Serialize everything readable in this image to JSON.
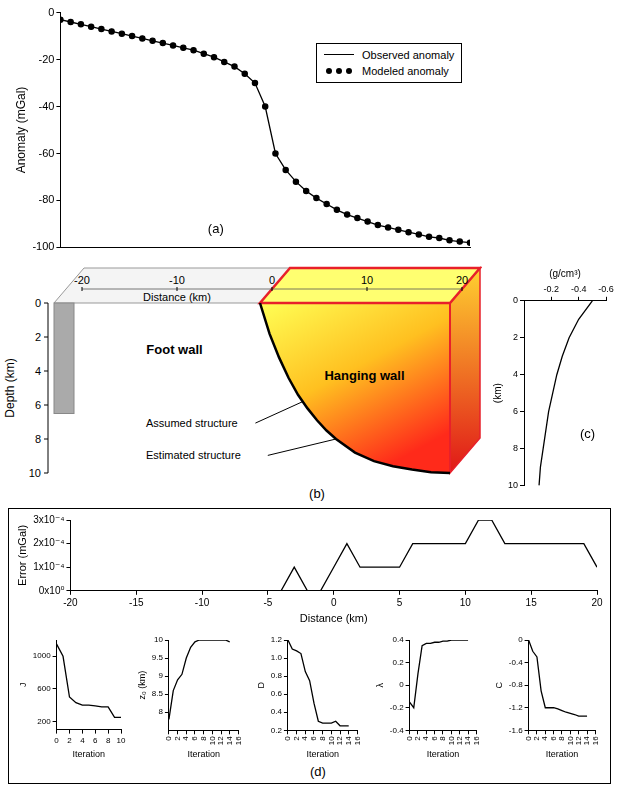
{
  "chart_data": [
    {
      "panel": "(a)",
      "type": "line",
      "y_label": "Anomaly (mGal)",
      "xlim": [
        -20,
        20
      ],
      "ylim": [
        -100,
        0
      ],
      "yticks": [
        -100,
        -80,
        -60,
        -40,
        -20,
        0
      ],
      "tick_labels": "y",
      "grid": false,
      "legend": "upper right",
      "x": [
        -20,
        -19,
        -18,
        -17,
        -16,
        -15,
        -14,
        -13,
        -12,
        -11,
        -10,
        -9,
        -8,
        -7,
        -6,
        -5,
        -4,
        -3,
        -2,
        -1,
        0,
        1,
        2,
        3,
        4,
        5,
        6,
        7,
        8,
        9,
        10,
        11,
        12,
        13,
        14,
        15,
        16,
        17,
        18,
        19,
        20
      ],
      "series": [
        {
          "name": "Observed anomaly",
          "color": "#000000",
          "marker": "none",
          "line_style": "solid",
          "values": [
            -3,
            -4,
            -5,
            -6,
            -7,
            -8,
            -9,
            -10,
            -11,
            -12,
            -13,
            -14,
            -15,
            -16,
            -17.5,
            -19,
            -21,
            -23,
            -26,
            -30,
            -40,
            -60,
            -67,
            -72,
            -76,
            -79,
            -81.5,
            -84,
            -86,
            -87.5,
            -89,
            -90.5,
            -91.5,
            -92.5,
            -93.5,
            -94.5,
            -95.5,
            -96,
            -97,
            -97.5,
            -98
          ]
        },
        {
          "name": "Modeled anomaly",
          "color": "#000000",
          "marker": "circle",
          "line_style": "none",
          "values": [
            -3,
            -4,
            -5,
            -6,
            -7,
            -8,
            -9,
            -10,
            -11,
            -12,
            -13,
            -14,
            -15,
            -16,
            -17.5,
            -19,
            -21,
            -23,
            -26,
            -30,
            -40,
            -60,
            -67,
            -72,
            -76,
            -79,
            -81.5,
            -84,
            -86,
            -87.5,
            -89,
            -90.5,
            -91.5,
            -92.5,
            -93.5,
            -94.5,
            -95.5,
            -96,
            -97,
            -97.5,
            -98
          ]
        }
      ]
    },
    {
      "panel": "(c)",
      "type": "line",
      "x_label": "(g/cm³)",
      "y_label": "(km)",
      "xlim": [
        0,
        -0.6
      ],
      "xticks": [
        -0.2,
        -0.4,
        -0.6
      ],
      "ylim": [
        10,
        0
      ],
      "yticks": [
        0,
        2,
        4,
        6,
        8,
        10
      ],
      "grid": false,
      "color": "#000000",
      "x": [
        -0.5,
        -0.4,
        -0.33,
        -0.28,
        -0.24,
        -0.21,
        -0.18,
        -0.16,
        -0.14,
        -0.12,
        -0.11
      ],
      "values": [
        0,
        1,
        2,
        3,
        4,
        5,
        6,
        7,
        8,
        9,
        10
      ]
    },
    {
      "panel": "(d)",
      "type": "line",
      "x_label": "Distance (km)",
      "y_label": "Error (mGal)",
      "xlim": [
        -20,
        20
      ],
      "xticks": [
        -20,
        -15,
        -10,
        -5,
        0,
        5,
        10,
        15,
        20
      ],
      "ylim": [
        0,
        0.0003
      ],
      "yticks": [
        {
          "value": 0,
          "label": "0x10⁰"
        },
        {
          "value": 0.0001,
          "label": "1x10⁻⁴"
        },
        {
          "value": 0.0002,
          "label": "2x10⁻⁴"
        },
        {
          "value": 0.0003,
          "label": "3x10⁻⁴"
        }
      ],
      "grid": false,
      "color": "#000000",
      "x": [
        -4,
        -3,
        -2,
        -1,
        0,
        1,
        2,
        3,
        4,
        5,
        6,
        7,
        8,
        9,
        10,
        11,
        12,
        13,
        14,
        15,
        16,
        17,
        18,
        19,
        20
      ],
      "values": [
        0,
        0.0001,
        0,
        0,
        0.0001,
        0.0002,
        0.0001,
        0.0001,
        0.0001,
        0.0001,
        0.0002,
        0.0002,
        0.0002,
        0.0002,
        0.0002,
        0.0003,
        0.0003,
        0.0002,
        0.0002,
        0.0002,
        0.0002,
        0.0002,
        0.0002,
        0.0002,
        0.0001
      ]
    },
    {
      "type": "line",
      "x_label": "Iteration",
      "y_label": "J",
      "xlim": [
        0,
        10
      ],
      "xticks": [
        0,
        2,
        4,
        6,
        8,
        10
      ],
      "ylim": [
        100,
        1200
      ],
      "yticks": [
        200,
        600,
        1000
      ],
      "grid": false,
      "color": "#000000",
      "x": [
        0,
        1,
        2,
        3,
        4,
        5,
        6,
        7,
        8,
        9,
        10
      ],
      "values": [
        1150,
        1000,
        500,
        430,
        400,
        400,
        390,
        380,
        380,
        250,
        250
      ]
    },
    {
      "type": "line",
      "x_label": "Iteration",
      "y_label": "z₀ (km)",
      "xlim": [
        0,
        16
      ],
      "xticks": [
        0,
        2,
        4,
        6,
        8,
        10,
        12,
        14,
        16
      ],
      "ylim": [
        7.5,
        10
      ],
      "yticks": [
        8,
        8.5,
        9,
        9.5,
        10
      ],
      "grid": false,
      "color": "#000000",
      "x": [
        0,
        1,
        2,
        3,
        4,
        5,
        6,
        7,
        8,
        9,
        10,
        11,
        12,
        13,
        14
      ],
      "values": [
        7.8,
        8.6,
        8.9,
        9.05,
        9.5,
        9.8,
        9.95,
        10,
        10,
        10,
        10,
        10,
        10,
        10,
        9.95
      ]
    },
    {
      "type": "line",
      "x_label": "Iteration",
      "y_label": "D",
      "xlim": [
        0,
        16
      ],
      "xticks": [
        0,
        2,
        4,
        6,
        8,
        10,
        12,
        14,
        16
      ],
      "ylim": [
        0.2,
        1.2
      ],
      "yticks": [
        0.2,
        0.4,
        0.6,
        0.8,
        {
          "value": 1,
          "label": "1.0"
        },
        1.2
      ],
      "grid": false,
      "color": "#000000",
      "x": [
        0,
        1,
        2,
        3,
        4,
        5,
        6,
        7,
        8,
        9,
        10,
        11,
        12,
        13,
        14
      ],
      "values": [
        1.2,
        1.1,
        1.08,
        1.05,
        0.85,
        0.75,
        0.5,
        0.3,
        0.28,
        0.28,
        0.28,
        0.3,
        0.25,
        0.25,
        0.25
      ]
    },
    {
      "type": "line",
      "x_label": "Iteration",
      "y_label": "λ",
      "xlim": [
        0,
        16
      ],
      "xticks": [
        0,
        2,
        4,
        6,
        8,
        10,
        12,
        14,
        16
      ],
      "ylim": [
        -0.4,
        0.4
      ],
      "yticks": [
        -0.4,
        -0.2,
        0,
        0.2,
        0.4
      ],
      "grid": false,
      "color": "#000000",
      "x": [
        0,
        1,
        2,
        3,
        4,
        5,
        6,
        7,
        8,
        9,
        10,
        11,
        12,
        13,
        14
      ],
      "values": [
        -0.15,
        -0.2,
        0.1,
        0.35,
        0.37,
        0.37,
        0.38,
        0.38,
        0.39,
        0.39,
        0.4,
        0.4,
        0.4,
        0.4,
        0.4
      ]
    },
    {
      "type": "line",
      "x_label": "Iteration",
      "y_label": "C",
      "xlim": [
        0,
        16
      ],
      "xticks": [
        0,
        2,
        4,
        6,
        8,
        10,
        12,
        14,
        16
      ],
      "ylim": [
        -1.6,
        0
      ],
      "yticks": [
        -1.6,
        -1.2,
        -0.8,
        -0.4,
        0
      ],
      "grid": false,
      "color": "#000000",
      "x": [
        0,
        1,
        2,
        3,
        4,
        5,
        6,
        7,
        8,
        9,
        10,
        11,
        12,
        13,
        14
      ],
      "values": [
        0,
        -0.2,
        -0.3,
        -0.9,
        -1.2,
        -1.2,
        -1.2,
        -1.22,
        -1.25,
        -1.28,
        -1.3,
        -1.32,
        -1.35,
        -1.35,
        -1.35
      ]
    }
  ],
  "diagram": {
    "panel": "(b)",
    "distance_label": "Distance (km)",
    "xlim": [
      -20,
      20
    ],
    "xticks": [
      -20,
      -10,
      0,
      10,
      20
    ],
    "depth_label": "Depth (km)",
    "ylim": [
      0,
      10
    ],
    "yticks": [
      0,
      2,
      4,
      6,
      8,
      10
    ],
    "foot_wall": "Foot wall",
    "hanging_wall": "Hanging wall",
    "assumed_label": "Assumed structure",
    "estimated_label": "Estimated structure",
    "fault": {
      "x": [
        0,
        1,
        2,
        3,
        4,
        5,
        6,
        7,
        8,
        10,
        12,
        14,
        16,
        18,
        20
      ],
      "depth": [
        0,
        1.8,
        3.2,
        4.4,
        5.4,
        6.2,
        6.9,
        7.5,
        8.0,
        8.8,
        9.3,
        9.6,
        9.8,
        9.95,
        10
      ]
    }
  }
}
